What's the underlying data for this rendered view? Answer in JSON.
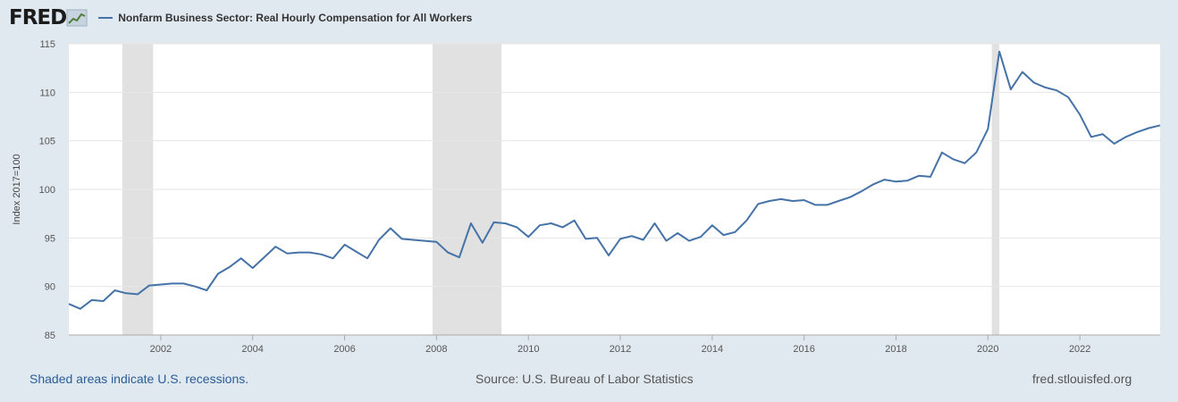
{
  "header": {
    "logo_text": "FRED",
    "logo_icon": "line-chart-icon",
    "legend_color": "#4572a7"
  },
  "footer": {
    "left": "Shaded areas indicate U.S. recessions.",
    "center": "Source: U.S. Bureau of Labor Statistics",
    "right": "fred.stlouisfed.org"
  },
  "chart_data": {
    "type": "line",
    "title": "",
    "xlabel": "",
    "ylabel": "Index 2017=100",
    "xlim": [
      "2000-01-01",
      "2023-10-01"
    ],
    "ylim": [
      85,
      115
    ],
    "yticks": [
      85,
      90,
      95,
      100,
      105,
      110,
      115
    ],
    "xticks": [
      "2002",
      "2004",
      "2006",
      "2008",
      "2010",
      "2012",
      "2014",
      "2016",
      "2018",
      "2020",
      "2022"
    ],
    "grid": true,
    "legend_position": "top-left",
    "colors": {
      "line": "#4572a7",
      "recession": "#e1e1e1",
      "plot_bg": "#ffffff",
      "page_bg": "#e1e9f0"
    },
    "recessions": [
      {
        "start": "2001-03-01",
        "end": "2001-11-01"
      },
      {
        "start": "2007-12-01",
        "end": "2009-06-01"
      },
      {
        "start": "2020-02-01",
        "end": "2020-04-01"
      }
    ],
    "series": [
      {
        "name": "Nonfarm Business Sector: Real Hourly Compensation for All Workers",
        "x": [
          "2000-01-01",
          "2000-04-01",
          "2000-07-01",
          "2000-10-01",
          "2001-01-01",
          "2001-04-01",
          "2001-07-01",
          "2001-10-01",
          "2002-01-01",
          "2002-04-01",
          "2002-07-01",
          "2002-10-01",
          "2003-01-01",
          "2003-04-01",
          "2003-07-01",
          "2003-10-01",
          "2004-01-01",
          "2004-04-01",
          "2004-07-01",
          "2004-10-01",
          "2005-01-01",
          "2005-04-01",
          "2005-07-01",
          "2005-10-01",
          "2006-01-01",
          "2006-04-01",
          "2006-07-01",
          "2006-10-01",
          "2007-01-01",
          "2007-04-01",
          "2007-07-01",
          "2007-10-01",
          "2008-01-01",
          "2008-04-01",
          "2008-07-01",
          "2008-10-01",
          "2009-01-01",
          "2009-04-01",
          "2009-07-01",
          "2009-10-01",
          "2010-01-01",
          "2010-04-01",
          "2010-07-01",
          "2010-10-01",
          "2011-01-01",
          "2011-04-01",
          "2011-07-01",
          "2011-10-01",
          "2012-01-01",
          "2012-04-01",
          "2012-07-01",
          "2012-10-01",
          "2013-01-01",
          "2013-04-01",
          "2013-07-01",
          "2013-10-01",
          "2014-01-01",
          "2014-04-01",
          "2014-07-01",
          "2014-10-01",
          "2015-01-01",
          "2015-04-01",
          "2015-07-01",
          "2015-10-01",
          "2016-01-01",
          "2016-04-01",
          "2016-07-01",
          "2016-10-01",
          "2017-01-01",
          "2017-04-01",
          "2017-07-01",
          "2017-10-01",
          "2018-01-01",
          "2018-04-01",
          "2018-07-01",
          "2018-10-01",
          "2019-01-01",
          "2019-04-01",
          "2019-07-01",
          "2019-10-01",
          "2020-01-01",
          "2020-04-01",
          "2020-07-01",
          "2020-10-01",
          "2021-01-01",
          "2021-04-01",
          "2021-07-01",
          "2021-10-01",
          "2022-01-01",
          "2022-04-01",
          "2022-07-01",
          "2022-10-01",
          "2023-01-01",
          "2023-04-01",
          "2023-07-01",
          "2023-10-01"
        ],
        "values": [
          88.2,
          87.7,
          88.6,
          88.5,
          89.6,
          89.3,
          89.2,
          90.1,
          90.2,
          90.3,
          90.3,
          90.0,
          89.6,
          91.3,
          92.0,
          92.9,
          91.9,
          93.0,
          94.1,
          93.4,
          93.5,
          93.5,
          93.3,
          92.9,
          94.3,
          93.6,
          92.9,
          94.8,
          96.0,
          94.9,
          94.8,
          94.7,
          94.6,
          93.5,
          93.0,
          96.5,
          94.5,
          96.6,
          96.5,
          96.1,
          95.1,
          96.3,
          96.5,
          96.1,
          96.8,
          94.9,
          95.0,
          93.2,
          94.9,
          95.2,
          94.8,
          96.5,
          94.7,
          95.5,
          94.7,
          95.1,
          96.3,
          95.3,
          95.6,
          96.8,
          98.5,
          98.8,
          99.0,
          98.8,
          98.9,
          98.4,
          98.4,
          98.8,
          99.2,
          99.8,
          100.5,
          101.0,
          100.8,
          100.9,
          101.4,
          101.3,
          103.8,
          103.1,
          102.7,
          103.8,
          106.2,
          114.2,
          110.3,
          112.1,
          111.0,
          110.5,
          110.2,
          109.5,
          107.7,
          105.4,
          105.7,
          104.7,
          105.4,
          105.9,
          106.3,
          106.6
        ]
      }
    ]
  }
}
